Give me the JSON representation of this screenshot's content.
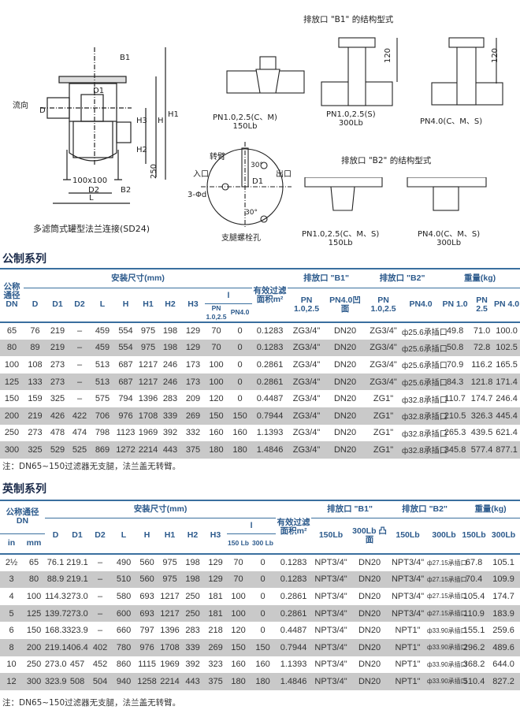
{
  "drawings": {
    "main_caption": "多滤筒式罐型法兰连接(SD24)",
    "main_labels": {
      "flow": "流向",
      "b1": "B1",
      "b2": "B2",
      "d": "D",
      "d1": "D1",
      "d2": "D2",
      "l": "L",
      "h": "H",
      "h1": "H1",
      "h2": "H2",
      "h3": "H3",
      "dim250": "250",
      "foot": "100x100"
    },
    "b1_title": "排放口 \"B1\" 的结构型式",
    "b1_variants": [
      {
        "line1": "PN1.0,2.5(C、M)",
        "line2": "150Lb"
      },
      {
        "line1": "PN1.0,2.5(S)",
        "line2": "300Lb"
      },
      {
        "line1": "PN4.0(C、M、S)",
        "line2": ""
      }
    ],
    "dim120": "120",
    "bolt_caption": "支腿螺栓孔",
    "bolt_labels": {
      "arm": "转臂",
      "inlet": "入口",
      "outlet": "出口",
      "hole": "3-Φd",
      "d1": "D1",
      "a30a": "30°",
      "a30b": "30°"
    },
    "b2_title": "排放口 \"B2\" 的结构型式",
    "b2_variants": [
      {
        "line1": "PN1.0,2.5(C、M、S)",
        "line2": "150Lb"
      },
      {
        "line1": "PN4.0(C、M、S)",
        "line2": "300Lb"
      }
    ]
  },
  "metric": {
    "title": "公制系列",
    "headers": {
      "dn": "公称通径DN",
      "install": "安装尺寸(mm)",
      "area": "有效过滤面积m²",
      "b1": "排放口 \"B1\"",
      "b2": "排放口 \"B2\"",
      "weight": "重量(kg)",
      "cols": [
        "D",
        "D1",
        "D2",
        "L",
        "H",
        "H1",
        "H2",
        "H3"
      ],
      "l": "l",
      "l_sub": [
        "PN 1.0,2.5",
        "PN4.0"
      ],
      "b1_sub": [
        "PN 1.0,2.5",
        "PN4.0凹面"
      ],
      "b2_sub": [
        "PN 1.0,2.5",
        "PN4.0"
      ],
      "w_sub": [
        "PN 1.0",
        "PN 2.5",
        "PN 4.0"
      ]
    },
    "rows": [
      [
        "65",
        "76",
        "219",
        "–",
        "459",
        "554",
        "975",
        "198",
        "129",
        "70",
        "0",
        "0.1283",
        "ZG3/4\"",
        "DN20",
        "ZG3/4\"",
        "ф25.6承插口",
        "49.8",
        "71.0",
        "100.0"
      ],
      [
        "80",
        "89",
        "219",
        "–",
        "459",
        "554",
        "975",
        "198",
        "129",
        "70",
        "0",
        "0.1283",
        "ZG3/4\"",
        "DN20",
        "ZG3/4\"",
        "ф25.6承插口",
        "50.8",
        "72.8",
        "102.5"
      ],
      [
        "100",
        "108",
        "273",
        "–",
        "513",
        "687",
        "1217",
        "246",
        "173",
        "100",
        "0",
        "0.2861",
        "ZG3/4\"",
        "DN20",
        "ZG3/4\"",
        "ф25.6承插口",
        "70.9",
        "116.2",
        "165.5"
      ],
      [
        "125",
        "133",
        "273",
        "–",
        "513",
        "687",
        "1217",
        "246",
        "173",
        "100",
        "0",
        "0.2861",
        "ZG3/4\"",
        "DN20",
        "ZG3/4\"",
        "ф25.6承插口",
        "84.3",
        "121.8",
        "171.4"
      ],
      [
        "150",
        "159",
        "325",
        "–",
        "575",
        "794",
        "1396",
        "283",
        "209",
        "120",
        "0",
        "0.4487",
        "ZG3/4\"",
        "DN20",
        "ZG1\"",
        "ф32.8承插口",
        "110.7",
        "174.7",
        "246.4"
      ],
      [
        "200",
        "219",
        "426",
        "422",
        "706",
        "976",
        "1708",
        "339",
        "269",
        "150",
        "150",
        "0.7944",
        "ZG3/4\"",
        "DN20",
        "ZG1\"",
        "ф32.8承插口",
        "210.5",
        "326.3",
        "445.4"
      ],
      [
        "250",
        "273",
        "478",
        "474",
        "798",
        "1123",
        "1969",
        "392",
        "332",
        "160",
        "160",
        "1.1393",
        "ZG3/4\"",
        "DN20",
        "ZG1\"",
        "ф32.8承插口",
        "265.3",
        "439.5",
        "621.4"
      ],
      [
        "300",
        "325",
        "529",
        "525",
        "869",
        "1272",
        "2214",
        "443",
        "375",
        "180",
        "180",
        "1.4846",
        "ZG3/4\"",
        "DN20",
        "ZG1\"",
        "ф32.8承插口",
        "345.8",
        "577.4",
        "877.1"
      ]
    ],
    "note": "注：DN65~150过滤器无支腿，法兰盖无转臂。"
  },
  "imperial": {
    "title": "英制系列",
    "headers": {
      "dn": "公称通径DN",
      "dn_sub": [
        "in",
        "mm"
      ],
      "install": "安装尺寸(mm)",
      "area": "有效过滤面积m²",
      "b1": "排放口 \"B1\"",
      "b2": "排放口 \"B2\"",
      "weight": "重量(kg)",
      "cols": [
        "D",
        "D1",
        "D2",
        "L",
        "H",
        "H1",
        "H2",
        "H3"
      ],
      "l": "l",
      "l_sub": [
        "150 Lb",
        "300 Lb"
      ],
      "b1_sub": [
        "150Lb",
        "300Lb 凸面"
      ],
      "b2_sub": [
        "150Lb",
        "300Lb"
      ],
      "w_sub": [
        "150Lb",
        "300Lb"
      ]
    },
    "rows": [
      [
        "2½",
        "65",
        "76.1",
        "219.1",
        "–",
        "490",
        "560",
        "975",
        "198",
        "129",
        "70",
        "0",
        "0.1283",
        "NPT3/4\"",
        "DN20",
        "NPT3/4\"",
        "ф27.15承插口",
        "67.8",
        "105.1"
      ],
      [
        "3",
        "80",
        "88.9",
        "219.1",
        "–",
        "510",
        "560",
        "975",
        "198",
        "129",
        "70",
        "0",
        "0.1283",
        "NPT3/4\"",
        "DN20",
        "NPT3/4\"",
        "ф27.15承插口",
        "70.4",
        "109.9"
      ],
      [
        "4",
        "100",
        "114.3",
        "273.0",
        "–",
        "580",
        "693",
        "1217",
        "250",
        "181",
        "100",
        "0",
        "0.2861",
        "NPT3/4\"",
        "DN20",
        "NPT3/4\"",
        "ф27.15承插口",
        "105.4",
        "174.7"
      ],
      [
        "5",
        "125",
        "139.7",
        "273.0",
        "–",
        "600",
        "693",
        "1217",
        "250",
        "181",
        "100",
        "0",
        "0.2861",
        "NPT3/4\"",
        "DN20",
        "NPT3/4\"",
        "ф27.15承插口",
        "110.9",
        "183.9"
      ],
      [
        "6",
        "150",
        "168.3",
        "323.9",
        "–",
        "660",
        "797",
        "1396",
        "283",
        "218",
        "120",
        "0",
        "0.4487",
        "NPT3/4\"",
        "DN20",
        "NPT1\"",
        "ф33.90承插口",
        "155.1",
        "259.6"
      ],
      [
        "8",
        "200",
        "219.1",
        "406.4",
        "402",
        "780",
        "976",
        "1708",
        "339",
        "269",
        "150",
        "150",
        "0.7944",
        "NPT3/4\"",
        "DN20",
        "NPT1\"",
        "ф33.90承插口",
        "296.2",
        "489.6"
      ],
      [
        "10",
        "250",
        "273.0",
        "457",
        "452",
        "860",
        "1115",
        "1969",
        "392",
        "323",
        "160",
        "160",
        "1.1393",
        "NPT3/4\"",
        "DN20",
        "NPT1\"",
        "ф33.90承插口",
        "368.2",
        "644.0"
      ],
      [
        "12",
        "300",
        "323.9",
        "508",
        "504",
        "940",
        "1258",
        "2214",
        "443",
        "375",
        "180",
        "180",
        "1.4846",
        "NPT3/4\"",
        "DN20",
        "NPT1\"",
        "ф33.90承插口",
        "510.4",
        "827.2"
      ]
    ],
    "note": "注：DN65~150过滤器无支腿，法兰盖无转臂。"
  }
}
